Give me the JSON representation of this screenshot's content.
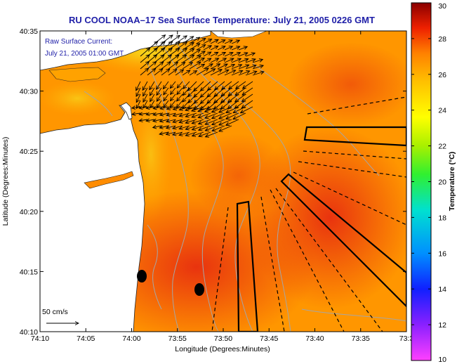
{
  "chart_data": {
    "type": "heatmap",
    "title": "RU COOL  NOAA–17  Sea Surface Temperature:  July 21, 2005 0226 GMT",
    "xlabel": "Longitude (Degrees:Minutes)",
    "ylabel": "Latitude (Degrees:Minutes)",
    "x_ticks": [
      "74:10",
      "74:05",
      "74:00",
      "73:55",
      "73:50",
      "73:45",
      "73:40",
      "73:35",
      "73:3"
    ],
    "y_ticks": [
      "40:35",
      "40:30",
      "40:25",
      "40:20",
      "40:15",
      "40:10"
    ],
    "xlim_minutes_west": [
      10,
      30
    ],
    "ylim_minutes": [
      10,
      35
    ],
    "current_legend": {
      "line1": "Raw Surface Current:",
      "line2": "July 21, 2005 01:00 GMT",
      "scale_label": "50 cm/s"
    },
    "colorbar": {
      "label": "Temperature (°C)",
      "min": 10,
      "max": 30,
      "ticks": [
        "30",
        "28",
        "26",
        "24",
        "22",
        "20",
        "18",
        "16",
        "14",
        "12",
        "10"
      ]
    },
    "markers": [
      {
        "lon": "73:59.2",
        "lat": "40:14.4"
      },
      {
        "lon": "73:53.6",
        "lat": "40:13.4"
      }
    ],
    "colors": {
      "title": "#1f1fa8",
      "sst_warm": "#ee3010",
      "sst_mid": "#ff9a00",
      "land": "#ffffff",
      "contour": "#a8a8a8"
    }
  }
}
